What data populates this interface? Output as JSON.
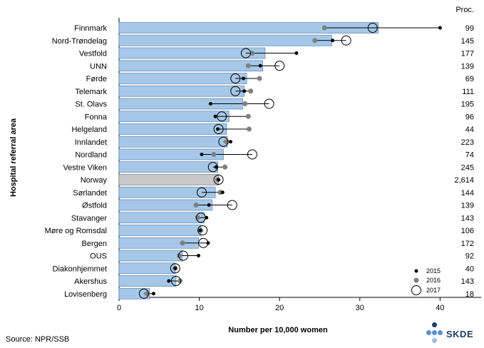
{
  "chart_data": {
    "type": "bar",
    "title": "",
    "xlabel": "Number per 10,000 women",
    "ylabel": "Hospital referral area",
    "xlim": [
      0,
      45
    ],
    "xticks": [
      0,
      10,
      20,
      30,
      40
    ],
    "count_header": "Proc.",
    "highlight_category": "Norway",
    "categories": [
      "Finnmark",
      "Nord-Trøndelag",
      "Vestfold",
      "UNN",
      "Førde",
      "Telemark",
      "St. Olavs",
      "Fonna",
      "Helgeland",
      "Innlandet",
      "Nordland",
      "Vestre Viken",
      "Norway",
      "Sørlandet",
      "Østfold",
      "Stavanger",
      "Møre og Romsdal",
      "Bergen",
      "OUS",
      "Diakonhjemmet",
      "Akershus",
      "Lovisenberg"
    ],
    "values": [
      32.3,
      26.5,
      18.2,
      17.9,
      15.9,
      15.6,
      15.4,
      13.7,
      13.4,
      13.5,
      13.0,
      12.3,
      12.4,
      12.0,
      11.6,
      10.6,
      10.2,
      9.9,
      7.9,
      7.0,
      7.1,
      3.8
    ],
    "counts": [
      "99",
      "145",
      "177",
      "139",
      "69",
      "111",
      "195",
      "96",
      "44",
      "223",
      "74",
      "245",
      "2,614",
      "144",
      "139",
      "143",
      "106",
      "172",
      "92",
      "40",
      "143",
      "18"
    ],
    "series": [
      {
        "name": "2015",
        "values": [
          40.0,
          26.6,
          22.1,
          17.6,
          15.5,
          15.6,
          11.4,
          12.0,
          12.3,
          13.9,
          10.3,
          12.1,
          12.4,
          12.9,
          11.2,
          10.9,
          10.1,
          11.1,
          9.9,
          7.0,
          6.2,
          4.3
        ]
      },
      {
        "name": "2016",
        "values": [
          25.6,
          24.4,
          16.6,
          16.1,
          17.5,
          16.4,
          15.7,
          16.1,
          16.2,
          13.4,
          11.8,
          13.2,
          12.3,
          12.6,
          9.6,
          9.8,
          10.2,
          7.9,
          7.5,
          7.0,
          7.6,
          3.5
        ]
      },
      {
        "name": "2017",
        "values": [
          31.6,
          28.3,
          15.8,
          20.0,
          14.5,
          14.5,
          18.7,
          12.8,
          12.4,
          13.0,
          16.6,
          11.7,
          12.4,
          10.3,
          14.1,
          10.2,
          10.4,
          10.5,
          8.0,
          7.0,
          7.1,
          3.1
        ]
      }
    ],
    "legend_position": "bottom-right",
    "colors": {
      "bar": "#a6c8e8",
      "bar_highlight": "#c8c8c8",
      "bar_edge": "#6a8fb8",
      "s2015": "#000000",
      "s2016": "#808080",
      "s2017": "#000000"
    }
  },
  "footer": {
    "source": "Source: NPR/SSB",
    "logo_text": "SKDE"
  }
}
